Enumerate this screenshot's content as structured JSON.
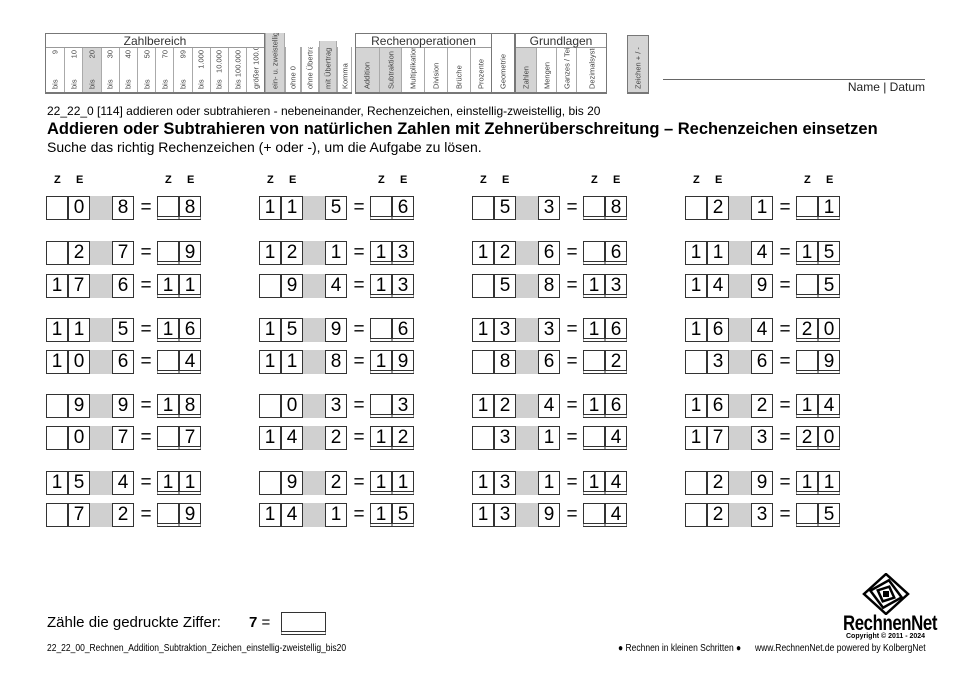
{
  "header": {
    "zahlbereich_title": "Zahlbereich",
    "zahlbereich": [
      {
        "top": "9",
        "bottom": "bis",
        "hl": false
      },
      {
        "top": "10",
        "bottom": "bis",
        "hl": false
      },
      {
        "top": "20",
        "bottom": "bis",
        "hl": true
      },
      {
        "top": "30",
        "bottom": "bis",
        "hl": false
      },
      {
        "top": "40",
        "bottom": "bis",
        "hl": false
      },
      {
        "top": "50",
        "bottom": "bis",
        "hl": false
      },
      {
        "top": "70",
        "bottom": "bis",
        "hl": false
      },
      {
        "top": "99",
        "bottom": "bis",
        "hl": false
      },
      {
        "top": "1.000",
        "bottom": "bis",
        "hl": false
      },
      {
        "top": "10.000",
        "bottom": "bis",
        "hl": false
      },
      {
        "top": "100.000",
        "bottom": "bis",
        "hl": false
      },
      {
        "top": "",
        "bottom": "größer 100.000",
        "hl": false
      }
    ],
    "extra": [
      {
        "label": "ein- u. zweistellig",
        "hl": true
      },
      {
        "label": "ohne 0",
        "hl": false
      },
      {
        "label": "ohne Übertrag",
        "hl": false
      },
      {
        "label": "mit Übertrag",
        "hl": true
      },
      {
        "label": "Komma",
        "hl": false
      }
    ],
    "rechen_title": "Rechenoperationen",
    "rechen": [
      {
        "label": "Addition",
        "hl": true
      },
      {
        "label": "Subtraktion",
        "hl": true
      },
      {
        "label": "Multiplikation",
        "hl": false
      },
      {
        "label": "Division",
        "hl": false
      },
      {
        "label": "Brüche",
        "hl": false
      },
      {
        "label": "Prozente",
        "hl": false
      }
    ],
    "geometrie": "Geometrie",
    "grund_title": "Grundlagen",
    "grund": [
      {
        "label": "Zahlen",
        "hl": true
      },
      {
        "label": "Mengen",
        "hl": false
      },
      {
        "label": "Ganzes / Teile",
        "hl": false
      },
      {
        "label": "Dezimalsystem",
        "hl": false
      }
    ],
    "zeichen": "Zeichen + / -",
    "name_datum": "Name | Datum"
  },
  "worksheet": {
    "code_line": "22_22_0  [114]  addieren oder subtrahieren - nebeneinander, Rechenzeichen, einstellig-zweistellig, bis 20",
    "title": "Addieren oder Subtrahieren von natürlichen Zahlen mit Zehnerüberschreitung – Rechenzeichen einsetzen",
    "instruction": "Suche das richtig Rechenzeichen (+ oder -), um die Aufgabe zu lösen.",
    "z_label": "Z",
    "e_label": "E",
    "equals": "=",
    "highlight_color": "#d0d0d0",
    "columns": [
      [
        [
          "",
          "0",
          "8",
          "",
          "8"
        ],
        [
          "",
          "2",
          "7",
          "",
          "9"
        ],
        [
          "1",
          "7",
          "6",
          "1",
          "1"
        ],
        [
          "1",
          "1",
          "5",
          "1",
          "6"
        ],
        [
          "1",
          "0",
          "6",
          "",
          "4"
        ],
        [
          "",
          "9",
          "9",
          "1",
          "8"
        ],
        [
          "",
          "0",
          "7",
          "",
          "7"
        ],
        [
          "1",
          "5",
          "4",
          "1",
          "1"
        ],
        [
          "",
          "7",
          "2",
          "",
          "9"
        ]
      ],
      [
        [
          "1",
          "1",
          "5",
          "",
          "6"
        ],
        [
          "1",
          "2",
          "1",
          "1",
          "3"
        ],
        [
          "",
          "9",
          "4",
          "1",
          "3"
        ],
        [
          "1",
          "5",
          "9",
          "",
          "6"
        ],
        [
          "1",
          "1",
          "8",
          "1",
          "9"
        ],
        [
          "",
          "0",
          "3",
          "",
          "3"
        ],
        [
          "1",
          "4",
          "2",
          "1",
          "2"
        ],
        [
          "",
          "9",
          "2",
          "1",
          "1"
        ],
        [
          "1",
          "4",
          "1",
          "1",
          "5"
        ]
      ],
      [
        [
          "",
          "5",
          "3",
          "",
          "8"
        ],
        [
          "1",
          "2",
          "6",
          "",
          "6"
        ],
        [
          "",
          "5",
          "8",
          "1",
          "3"
        ],
        [
          "1",
          "3",
          "3",
          "1",
          "6"
        ],
        [
          "",
          "8",
          "6",
          "",
          "2"
        ],
        [
          "1",
          "2",
          "4",
          "1",
          "6"
        ],
        [
          "",
          "3",
          "1",
          "",
          "4"
        ],
        [
          "1",
          "3",
          "1",
          "1",
          "4"
        ],
        [
          "1",
          "3",
          "9",
          "",
          "4"
        ]
      ],
      [
        [
          "",
          "2",
          "1",
          "",
          "1"
        ],
        [
          "1",
          "1",
          "4",
          "1",
          "5"
        ],
        [
          "1",
          "4",
          "9",
          "",
          "5"
        ],
        [
          "1",
          "6",
          "4",
          "2",
          "0"
        ],
        [
          "",
          "3",
          "6",
          "",
          "9"
        ],
        [
          "1",
          "6",
          "2",
          "1",
          "4"
        ],
        [
          "1",
          "7",
          "3",
          "2",
          "0"
        ],
        [
          "",
          "2",
          "9",
          "1",
          "1"
        ],
        [
          "",
          "2",
          "3",
          "",
          "5"
        ]
      ]
    ]
  },
  "footer": {
    "count_label": "Zähle die gedruckte Ziffer:",
    "count_digit": "7",
    "equals": "=",
    "filename": "22_22_00_Rechnen_Addition_Subtraktion_Zeichen_einstellig-zweistellig_bis20",
    "slogan": "● Rechnen in kleinen Schritten ●",
    "site": "www.RechnenNet.de powered by KolbergNet",
    "brand": "RechnenNet",
    "copyright": "Copyright © 2011 - 2024"
  }
}
